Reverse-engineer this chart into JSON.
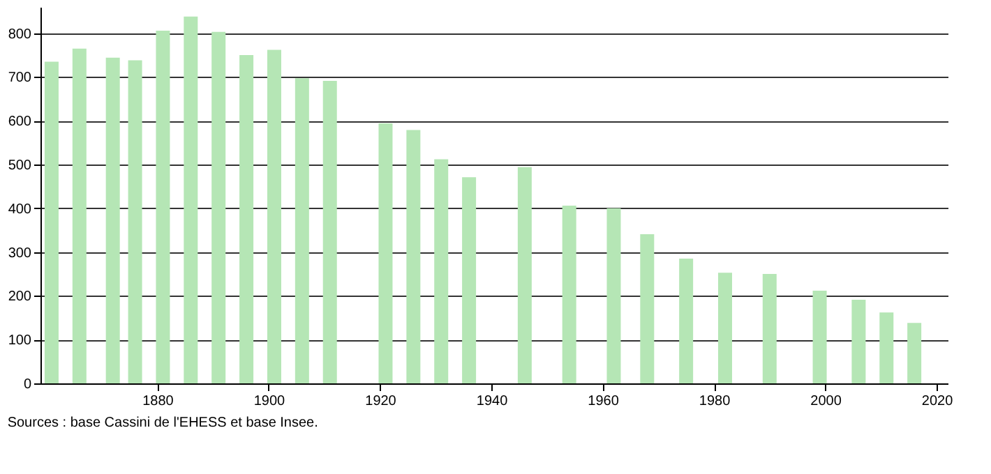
{
  "chart_data": {
    "type": "bar",
    "x": [
      1861,
      1866,
      1872,
      1876,
      1881,
      1886,
      1891,
      1896,
      1901,
      1906,
      1911,
      1921,
      1926,
      1931,
      1936,
      1946,
      1954,
      1962,
      1968,
      1975,
      1982,
      1990,
      1999,
      2006,
      2011,
      2016
    ],
    "values": [
      735,
      765,
      744,
      738,
      806,
      838,
      803,
      750,
      762,
      697,
      691,
      594,
      579,
      512,
      471,
      494,
      406,
      400,
      341,
      285,
      253,
      250,
      212,
      191,
      162,
      138
    ],
    "color": "#b5e6b5",
    "xlim": [
      1859,
      2022
    ],
    "xticks": [
      1880,
      1900,
      1920,
      1940,
      1960,
      1980,
      2000,
      2020
    ],
    "ylim": [
      0,
      860
    ],
    "yticks": [
      0,
      100,
      200,
      300,
      400,
      500,
      600,
      700,
      800
    ],
    "grid": "y",
    "annotations": [
      "Sources : base Cassini de l'EHESS et base Insee."
    ]
  }
}
